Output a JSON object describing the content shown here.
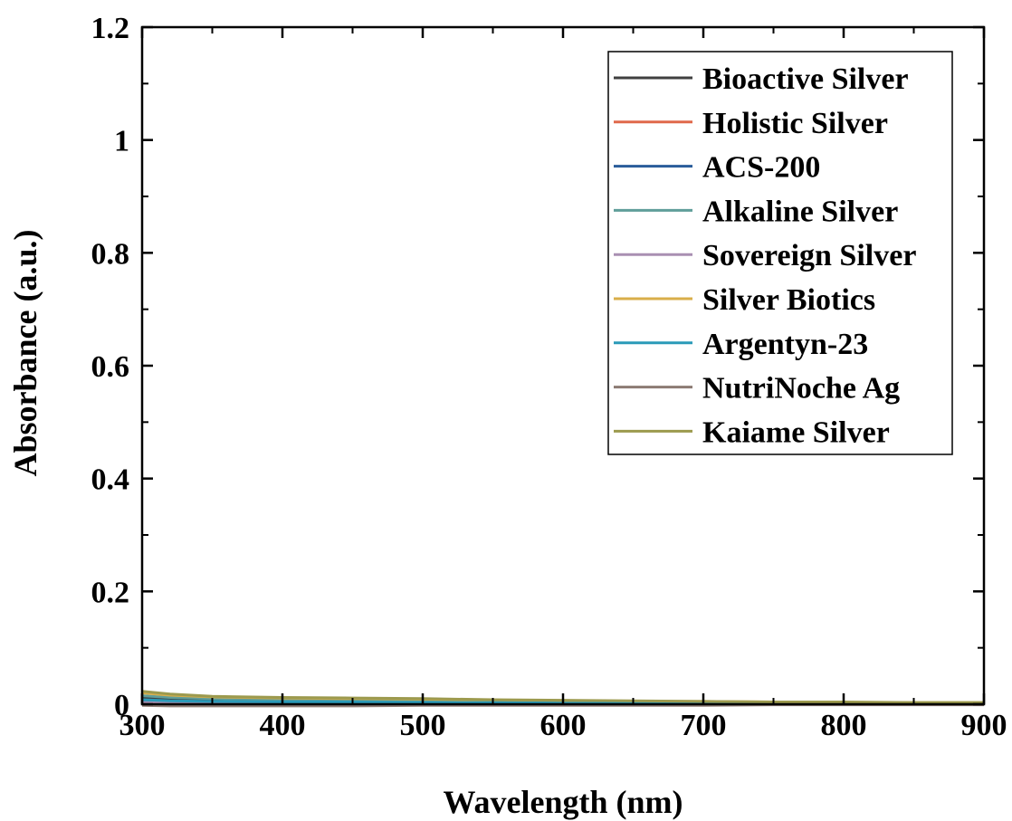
{
  "chart_data": {
    "type": "line",
    "xlabel": "Wavelength (nm)",
    "ylabel": "Absorbance (a.u.)",
    "xlim": [
      300,
      900
    ],
    "ylim": [
      0,
      1.2
    ],
    "x_ticks": [
      300,
      400,
      500,
      600,
      700,
      800,
      900
    ],
    "y_ticks": [
      0,
      0.2,
      0.4,
      0.6,
      0.8,
      1,
      1.2
    ],
    "x_tick_labels": [
      "300",
      "400",
      "500",
      "600",
      "700",
      "800",
      "900"
    ],
    "y_tick_labels": [
      "0",
      "0.2",
      "0.4",
      "0.6",
      "0.8",
      "1",
      "1.2"
    ],
    "grid": false,
    "legend_position": "top-right",
    "x": [
      300,
      320,
      350,
      400,
      450,
      500,
      550,
      600,
      650,
      700,
      750,
      800,
      850,
      900
    ],
    "series": [
      {
        "name": "Bioactive Silver",
        "color": "#404040",
        "values": [
          0.012,
          0.009,
          0.007,
          0.006,
          0.005,
          0.004,
          0.003,
          0.003,
          0.002,
          0.002,
          0.002,
          0.001,
          0.001,
          0.001
        ]
      },
      {
        "name": "Holistic Silver",
        "color": "#e0694b",
        "values": [
          0.006,
          0.005,
          0.004,
          0.003,
          0.003,
          0.002,
          0.002,
          0.002,
          0.001,
          0.001,
          0.001,
          0.001,
          0.001,
          0.001
        ]
      },
      {
        "name": "ACS-200",
        "color": "#2a5c9a",
        "values": [
          0.004,
          0.003,
          0.003,
          0.002,
          0.002,
          0.002,
          0.001,
          0.001,
          0.001,
          0.001,
          0.001,
          0.001,
          0.0,
          0.0
        ]
      },
      {
        "name": "Alkaline Silver",
        "color": "#5f9e9a",
        "values": [
          0.015,
          0.012,
          0.01,
          0.008,
          0.007,
          0.006,
          0.005,
          0.004,
          0.003,
          0.003,
          0.002,
          0.002,
          0.002,
          0.001
        ]
      },
      {
        "name": "Sovereign Silver",
        "color": "#a98fb2",
        "values": [
          0.003,
          0.002,
          0.002,
          0.002,
          0.001,
          0.001,
          0.001,
          0.001,
          0.001,
          0.001,
          0.0,
          0.0,
          0.0,
          0.0
        ]
      },
      {
        "name": "Silver Biotics",
        "color": "#d9ae4a",
        "values": [
          0.02,
          0.016,
          0.013,
          0.011,
          0.01,
          0.009,
          0.007,
          0.006,
          0.005,
          0.005,
          0.004,
          0.003,
          0.003,
          0.003
        ]
      },
      {
        "name": "Argentyn-23",
        "color": "#2a9ab8",
        "values": [
          0.008,
          0.006,
          0.005,
          0.004,
          0.004,
          0.003,
          0.003,
          0.002,
          0.002,
          0.002,
          0.001,
          0.001,
          0.001,
          0.001
        ]
      },
      {
        "name": "NutriNoche Ag",
        "color": "#8c7b73",
        "values": [
          -0.002,
          -0.003,
          -0.003,
          -0.003,
          -0.003,
          -0.002,
          -0.002,
          -0.002,
          -0.002,
          -0.002,
          -0.001,
          -0.001,
          -0.001,
          -0.001
        ]
      },
      {
        "name": "Kaiame Silver",
        "color": "#9c9a4e",
        "values": [
          0.023,
          0.018,
          0.014,
          0.012,
          0.011,
          0.01,
          0.008,
          0.007,
          0.006,
          0.005,
          0.004,
          0.004,
          0.003,
          0.003
        ]
      }
    ]
  }
}
